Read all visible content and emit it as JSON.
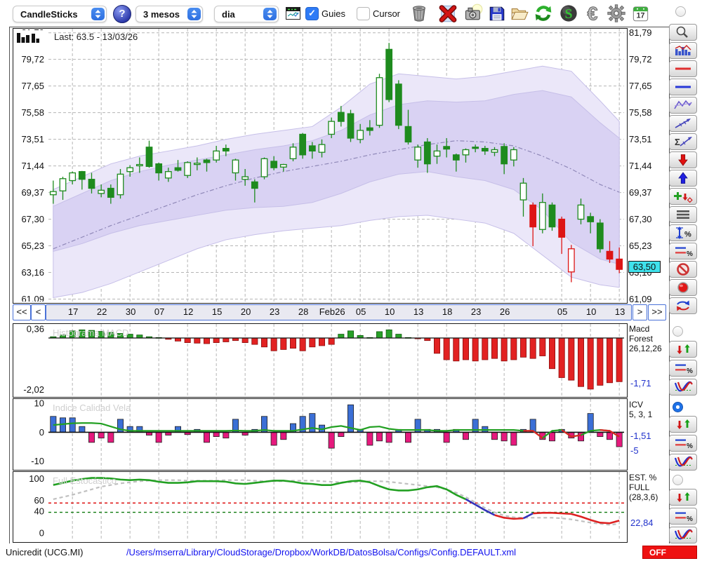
{
  "toolbar": {
    "chart_type": "CandleSticks",
    "period": "3 mesos",
    "interval": "dia",
    "help": "?",
    "guies": "Guies",
    "cursor": "Cursor",
    "calendar_day": "17"
  },
  "nav": {
    "first": "<<",
    "prev": "<",
    "next": ">",
    "last": ">>"
  },
  "panels": {
    "main": {
      "last_label": "Last: 63.5 - 13/03/26",
      "badge": "63,50"
    },
    "macd": {
      "watermark": "Histograma MACD",
      "line1": "Macd",
      "line2": "Forest",
      "line3": "26,12,26",
      "value": "-1,71"
    },
    "icv": {
      "watermark": "Indice Calidad Vela",
      "line1": "ICV",
      "line2": "5, 3, 1",
      "value1": "-1,51",
      "value2": "-5"
    },
    "stoch": {
      "watermark": "Full Estocástico",
      "line1": "EST. %",
      "line2": "FULL",
      "line3": "(28,3,6)",
      "value": "22,84"
    }
  },
  "status": {
    "symbol": "Unicredit (UCG.MI)",
    "path": "/Users/mserra/Library/CloudStorage/Dropbox/WorkDB/DatosBolsa/Configs/Config.DEFAULT.xml",
    "off": "OFF"
  },
  "colors": {
    "candle_up": "#1e8b1e",
    "candle_down": "#dd1515",
    "band_outer": "#ebe7f9",
    "band_inner": "#d9d2f3",
    "band_mid": "#8f88b8",
    "grid": "#b5b5b5",
    "macd_pos": "#28a028",
    "macd_neg": "#e22222",
    "icv_pos": "#3b6fd6",
    "icv_neg": "#e6197d",
    "line_green": "#22a022",
    "line_red": "#dd2222",
    "line_blue": "#3333bb",
    "line_gray": "#c0c0c0",
    "badge_bg": "#3fe2ec",
    "accent_blue": "#2e7bf6",
    "value_text": "#2233cc",
    "off_bg": "#ee1111"
  },
  "chart_data": [
    {
      "type": "candlestick",
      "name": "price",
      "ymin": 60.9,
      "ymax": 82.1,
      "axis_values": [
        81.79,
        79.72,
        77.65,
        75.58,
        73.51,
        71.44,
        69.37,
        67.3,
        65.23,
        63.16,
        61.09
      ],
      "axis_labels": [
        "81,79",
        "79,72",
        "77,65",
        "75,58",
        "73,51",
        "71,44",
        "69,37",
        "67,30",
        "65,23",
        "63,16",
        "61,09"
      ],
      "dates": [
        "17",
        "22",
        "30",
        "07",
        "12",
        "15",
        "20",
        "23",
        "28",
        "Feb26",
        "05",
        "10",
        "13",
        "18",
        "23",
        "26",
        "05",
        "10",
        "13"
      ],
      "date_idx": [
        2,
        5,
        8,
        11,
        14,
        17,
        20,
        23,
        26,
        29,
        32,
        35,
        38,
        41,
        44,
        47,
        53,
        56,
        59
      ],
      "badge_value": 63.5,
      "candles": [
        [
          69.45,
          69.2,
          70.3,
          68.5,
          "g",
          "h"
        ],
        [
          70.45,
          69.5,
          70.6,
          68.8,
          "g",
          "h"
        ],
        [
          70.9,
          70.3,
          71.0,
          70.0,
          "g",
          "h"
        ],
        [
          71.0,
          70.4,
          71.05,
          69.6,
          "g",
          "s"
        ],
        [
          70.4,
          69.7,
          70.9,
          69.3,
          "g",
          "s"
        ],
        [
          69.55,
          69.3,
          70.0,
          69.0,
          "g",
          "h"
        ],
        [
          69.7,
          69.0,
          70.0,
          68.5,
          "g",
          "s"
        ],
        [
          70.8,
          69.2,
          71.2,
          68.9,
          "g",
          "h"
        ],
        [
          71.3,
          71.0,
          71.5,
          70.6,
          "g",
          "h"
        ],
        [
          71.55,
          71.45,
          72.1,
          70.9,
          "g",
          "h"
        ],
        [
          72.9,
          71.4,
          73.4,
          71.3,
          "g",
          "s"
        ],
        [
          71.6,
          70.9,
          71.7,
          70.3,
          "g",
          "s"
        ],
        [
          71.0,
          70.5,
          71.3,
          70.2,
          "g",
          "h"
        ],
        [
          71.3,
          71.1,
          71.9,
          71.0,
          "g",
          "s"
        ],
        [
          71.7,
          70.7,
          71.8,
          70.5,
          "g",
          "h"
        ],
        [
          71.65,
          71.55,
          72.1,
          71.1,
          "g",
          "h"
        ],
        [
          71.9,
          71.7,
          72.0,
          71.0,
          "g",
          "s"
        ],
        [
          72.6,
          71.9,
          73.0,
          71.7,
          "g",
          "h"
        ],
        [
          72.8,
          72.6,
          73.1,
          72.2,
          "g",
          "s"
        ],
        [
          71.9,
          70.9,
          72.0,
          70.3,
          "g",
          "h"
        ],
        [
          70.6,
          70.4,
          71.2,
          69.9,
          "g",
          "h"
        ],
        [
          70.2,
          69.7,
          70.4,
          68.6,
          "g",
          "s"
        ],
        [
          72.0,
          70.6,
          72.1,
          70.4,
          "g",
          "h"
        ],
        [
          71.8,
          71.3,
          72.2,
          71.1,
          "g",
          "s"
        ],
        [
          71.55,
          71.35,
          71.6,
          71.0,
          "g",
          "h"
        ],
        [
          72.9,
          72.0,
          73.2,
          71.8,
          "g",
          "h"
        ],
        [
          73.9,
          72.3,
          74.0,
          72.0,
          "g",
          "s"
        ],
        [
          73.0,
          72.6,
          73.3,
          72.0,
          "g",
          "s"
        ],
        [
          73.1,
          72.5,
          73.5,
          72.1,
          "g",
          "h"
        ],
        [
          74.9,
          73.9,
          75.2,
          73.6,
          "g",
          "h"
        ],
        [
          75.6,
          74.9,
          76.1,
          74.5,
          "g",
          "s"
        ],
        [
          75.5,
          73.6,
          75.8,
          73.3,
          "g",
          "s"
        ],
        [
          74.2,
          73.5,
          74.7,
          73.2,
          "g",
          "h"
        ],
        [
          74.4,
          74.2,
          75.0,
          73.8,
          "g",
          "s"
        ],
        [
          78.3,
          74.6,
          78.6,
          74.4,
          "g",
          "h"
        ],
        [
          80.5,
          76.6,
          81.0,
          76.4,
          "g",
          "s"
        ],
        [
          77.8,
          74.6,
          78.1,
          74.3,
          "g",
          "s"
        ],
        [
          74.5,
          73.3,
          75.8,
          73.1,
          "g",
          "s"
        ],
        [
          72.9,
          71.9,
          73.1,
          71.3,
          "g",
          "h"
        ],
        [
          73.3,
          71.6,
          73.6,
          70.9,
          "g",
          "s"
        ],
        [
          72.6,
          72.2,
          73.1,
          71.6,
          "g",
          "h"
        ],
        [
          72.95,
          72.75,
          73.6,
          72.1,
          "g",
          "s"
        ],
        [
          72.3,
          71.9,
          72.4,
          71.0,
          "g",
          "s"
        ],
        [
          72.7,
          72.3,
          72.8,
          71.7,
          "g",
          "h"
        ],
        [
          72.9,
          72.8,
          73.1,
          72.5,
          "g",
          "s"
        ],
        [
          72.8,
          72.6,
          73.0,
          72.3,
          "g",
          "s"
        ],
        [
          72.7,
          72.5,
          72.9,
          72.2,
          "g",
          "h"
        ],
        [
          72.95,
          71.6,
          73.2,
          70.8,
          "g",
          "s"
        ],
        [
          72.7,
          71.9,
          72.9,
          71.4,
          "g",
          "h"
        ],
        [
          70.1,
          68.8,
          70.5,
          67.5,
          "g",
          "h"
        ],
        [
          68.4,
          66.7,
          68.6,
          65.2,
          "r",
          "s"
        ],
        [
          68.6,
          66.5,
          69.3,
          66.2,
          "g",
          "h"
        ],
        [
          68.4,
          66.7,
          68.6,
          66.4,
          "g",
          "s"
        ],
        [
          67.3,
          65.9,
          67.5,
          64.6,
          "r",
          "s"
        ],
        [
          65.0,
          63.2,
          65.3,
          62.4,
          "r",
          "h"
        ],
        [
          68.4,
          67.3,
          68.9,
          66.9,
          "g",
          "h"
        ],
        [
          67.5,
          67.1,
          67.8,
          66.2,
          "g",
          "s"
        ],
        [
          67.0,
          65.0,
          67.3,
          64.7,
          "g",
          "s"
        ],
        [
          64.8,
          64.2,
          65.6,
          63.9,
          "r",
          "s"
        ],
        [
          64.2,
          63.4,
          65.1,
          63.1,
          "r",
          "s"
        ]
      ],
      "bands": {
        "idx": [
          0,
          3,
          6,
          9,
          12,
          15,
          18,
          21,
          24,
          27,
          30,
          33,
          36,
          39,
          42,
          45,
          48,
          51,
          54,
          57,
          59
        ],
        "outer_hi": [
          69.6,
          70.6,
          71.6,
          72.2,
          72.6,
          73.0,
          73.5,
          73.9,
          74.2,
          74.5,
          76.0,
          77.8,
          78.6,
          78.4,
          78.2,
          78.4,
          78.8,
          79.2,
          78.8,
          76.5,
          74.9
        ],
        "inner_hi": [
          68.3,
          69.3,
          70.3,
          71.0,
          71.5,
          71.9,
          72.3,
          72.7,
          73.0,
          73.4,
          74.2,
          75.4,
          76.2,
          76.5,
          76.4,
          76.5,
          77.0,
          77.3,
          76.8,
          74.8,
          73.6
        ],
        "mid": [
          65.0,
          65.9,
          66.8,
          67.6,
          68.4,
          69.2,
          69.9,
          70.5,
          71.0,
          71.4,
          71.8,
          72.3,
          72.7,
          73.1,
          73.4,
          73.3,
          73.0,
          72.2,
          71.2,
          70.0,
          69.4
        ],
        "inner_lo": [
          64.8,
          65.4,
          66.2,
          66.8,
          67.2,
          67.6,
          68.0,
          68.2,
          68.3,
          68.6,
          69.3,
          70.2,
          70.8,
          71.0,
          70.6,
          70.3,
          69.6,
          68.0,
          65.5,
          64.2,
          63.8
        ],
        "outer_lo": [
          61.2,
          61.6,
          62.3,
          63.2,
          64.1,
          65.0,
          65.7,
          66.1,
          66.4,
          66.6,
          66.8,
          67.2,
          67.5,
          67.6,
          67.3,
          67.0,
          66.2,
          64.5,
          62.8,
          62.2,
          62.0
        ]
      }
    },
    {
      "type": "bar",
      "name": "macd_histogram",
      "ymin": -2.25,
      "ymax": 0.55,
      "axis": [
        {
          "v": 0.36,
          "t": "0,36"
        },
        {
          "v": -2.02,
          "t": "-2,02"
        }
      ],
      "last_value": -1.71,
      "values": [
        0.05,
        0.12,
        0.28,
        0.32,
        0.3,
        0.26,
        0.22,
        0.18,
        0.15,
        0.12,
        0.05,
        0.02,
        -0.05,
        -0.12,
        -0.18,
        -0.2,
        -0.22,
        -0.18,
        -0.15,
        -0.1,
        -0.18,
        -0.25,
        -0.35,
        -0.5,
        -0.45,
        -0.4,
        -0.5,
        -0.35,
        -0.3,
        -0.25,
        0.15,
        0.28,
        0.1,
        0.02,
        0.25,
        0.32,
        0.15,
        0.02,
        -0.03,
        -0.1,
        -0.6,
        -0.85,
        -0.9,
        -0.85,
        -0.9,
        -0.85,
        -0.8,
        -0.9,
        -0.85,
        -0.75,
        -0.8,
        -0.7,
        -1.2,
        -1.55,
        -1.65,
        -1.9,
        -2.0,
        -1.85,
        -1.75,
        -1.71
      ]
    },
    {
      "type": "bar+line",
      "name": "icv",
      "ymin": -12.5,
      "ymax": 11.5,
      "axis": [
        {
          "v": 10,
          "t": "10"
        },
        {
          "v": 0,
          "t": "0"
        },
        {
          "v": -10,
          "t": "-10"
        }
      ],
      "last_bar": -5,
      "last_line": -1.51,
      "values": [
        5.5,
        5,
        5,
        2,
        -3.5,
        -2,
        -3.5,
        4.5,
        2,
        2,
        -1,
        -3.5,
        -1,
        2,
        -0.8,
        1,
        -3.5,
        -1.5,
        -2,
        4.5,
        -1,
        1,
        5.5,
        -4.5,
        -2.5,
        3,
        5.5,
        6.5,
        2.5,
        -5.5,
        -1.5,
        9.5,
        1,
        -4.5,
        -3,
        -3.5,
        1,
        -3.5,
        4.5,
        1,
        1,
        -3.5,
        1,
        -2.5,
        4.5,
        2,
        -2.5,
        -3,
        -4.5,
        1,
        4.5,
        -2.5,
        -3,
        1,
        -2,
        -3,
        6.5,
        -1.5,
        -2.5,
        -5
      ],
      "line": [
        2.5,
        2.8,
        3.1,
        3.2,
        3.2,
        3.0,
        2.0,
        1.0,
        0.5,
        0.5,
        0.5,
        0.5,
        0.5,
        0.5,
        0.5,
        0.5,
        0.5,
        0.5,
        0.5,
        0.6,
        0.5,
        0.5,
        0.8,
        0.5,
        0.5,
        0.5,
        1.0,
        1.5,
        1.0,
        1.8,
        2.2,
        1.5,
        0.8,
        1.8,
        2.0,
        1.2,
        0.8,
        0.8,
        0.8,
        0.8,
        0.5,
        0.5,
        0.8,
        0.8,
        0.8,
        0.8,
        0.8,
        0.8,
        0.8,
        0.5,
        0.5,
        -2.0,
        0.5,
        0.8,
        -1.5,
        -1.0,
        0.5,
        0.8,
        0.5,
        -1.51
      ],
      "line_red_segments": [
        [
          49,
          51
        ],
        [
          53,
          55
        ],
        [
          57,
          59
        ]
      ]
    },
    {
      "type": "line",
      "name": "full_stochastic",
      "ymin": -14,
      "ymax": 112,
      "axis": [
        {
          "v": 100,
          "t": "100"
        },
        {
          "v": 60,
          "t": "60"
        },
        {
          "v": 40,
          "t": "40"
        },
        {
          "v": 0,
          "t": "0"
        }
      ],
      "hlines": [
        {
          "v": 55,
          "color": "#dd0000"
        },
        {
          "v": 38,
          "color": "#0e7a0e"
        }
      ],
      "last_value": 22.84,
      "k": [
        88,
        92,
        96,
        99,
        101,
        101,
        100,
        98,
        97,
        98,
        97,
        94,
        92,
        92,
        93,
        95,
        95,
        95,
        94,
        91,
        90,
        92,
        94,
        96,
        96,
        94,
        91,
        90,
        88,
        88,
        92,
        95,
        96,
        93,
        86,
        80,
        78,
        78,
        80,
        84,
        86,
        80,
        70,
        62,
        52,
        42,
        33,
        28,
        26,
        27,
        36,
        37,
        37,
        36,
        35,
        30,
        24,
        19,
        18,
        22.84
      ],
      "k_segments": [
        {
          "from": 0,
          "to": 43,
          "c": "#22a022"
        },
        {
          "from": 43,
          "to": 46,
          "c": "#3333bb"
        },
        {
          "from": 46,
          "to": 49,
          "c": "#dd2222"
        },
        {
          "from": 49,
          "to": 50,
          "c": "#3333bb"
        },
        {
          "from": 50,
          "to": 59,
          "c": "#dd2222"
        }
      ],
      "d": [
        62,
        66,
        70,
        75,
        80,
        85,
        88,
        91,
        93,
        95,
        96,
        97,
        97,
        97,
        96,
        96,
        96,
        96,
        97,
        97,
        97,
        96,
        95,
        95,
        95,
        96,
        96,
        96,
        95,
        94,
        93,
        93,
        94,
        95,
        95,
        94,
        92,
        90,
        88,
        86,
        84,
        80,
        74,
        66,
        56,
        46,
        38,
        32,
        29,
        28,
        28,
        28,
        28,
        27,
        25,
        22,
        19,
        17,
        15,
        17
      ]
    }
  ]
}
